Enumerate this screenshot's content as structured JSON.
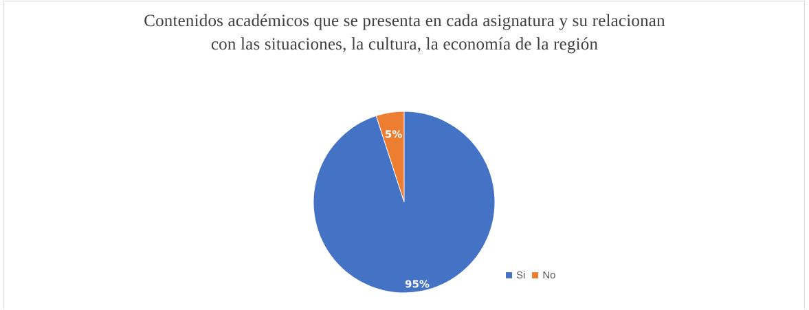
{
  "chart_data": {
    "type": "pie",
    "title_lines": [
      "Contenidos académicos que se presenta en cada asignatura y su relacionan",
      "con las situaciones, la cultura, la economía de la región"
    ],
    "slices": [
      {
        "label": "Si",
        "value": 95,
        "display": "95%",
        "color": "#4472c4"
      },
      {
        "label": "No",
        "value": 5,
        "display": "5%",
        "color": "#ed7d31"
      }
    ],
    "legend_position": "right",
    "start_angle": "top, clockwise"
  }
}
